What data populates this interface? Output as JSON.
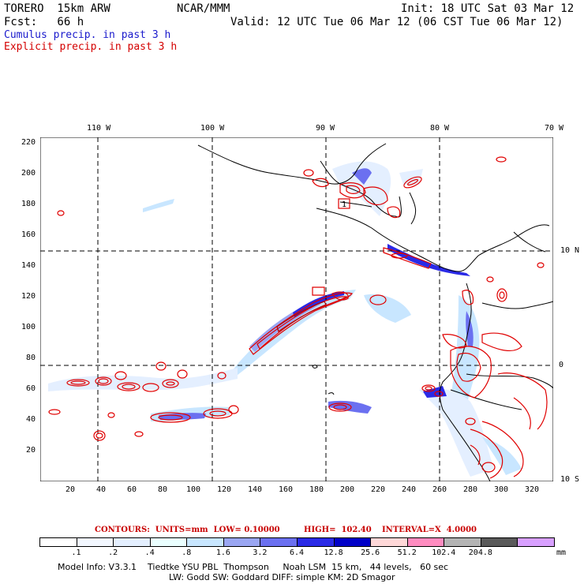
{
  "header": {
    "model": "TORERO  15km ARW",
    "org": "NCAR/MMM",
    "init": "Init: 18 UTC Sat 03 Mar 12",
    "fcst": "Fcst:   66 h",
    "valid": "Valid: 12 UTC Tue 06 Mar 12 (06 CST Tue 06 Mar 12)"
  },
  "legend": {
    "cumulus": "Cumulus precip. in past 3 h",
    "explicit": "Explicit precip. in past 3 h"
  },
  "axes": {
    "lon_labels": [
      "110 W",
      "100 W",
      "90 W",
      "80 W",
      "70 W"
    ],
    "lat_labels": [
      "10 N",
      "0",
      "10 S"
    ],
    "y_ticks": [
      "220",
      "200",
      "180",
      "160",
      "140",
      "120",
      "100",
      "80",
      "60",
      "40",
      "20"
    ],
    "x_ticks": [
      "20",
      "40",
      "60",
      "80",
      "100",
      "120",
      "140",
      "160",
      "180",
      "200",
      "220",
      "240",
      "260",
      "280",
      "300",
      "320"
    ]
  },
  "contours": {
    "units": "CONTOURS:  UNITS=mm  LOW= 0.10000",
    "high": "HIGH=  102.40",
    "interval": "INTERVAL=X  4.0000"
  },
  "colorbar": {
    "labels": [
      ".1",
      ".2",
      ".4",
      ".8",
      "1.6",
      "3.2",
      "6.4",
      "12.8",
      "25.6",
      "51.2",
      "102.4",
      "204.8"
    ],
    "unit": "mm",
    "colors": [
      "#ffffff",
      "#f2f7ff",
      "#e4efff",
      "#eaffff",
      "#c8e6ff",
      "#9aa6f2",
      "#6b70f0",
      "#2a2ae6",
      "#0000c8",
      "#ffd8d8",
      "#ff8cc0",
      "#b4b4b4",
      "#5a5a5a",
      "#d8a0ff"
    ]
  },
  "footer": {
    "line1": "Model Info: V3.3.1    Tiedtke YSU PBL  Thompson     Noah LSM  15 km,   44 levels,   60 sec",
    "line2": "LW: Godd SW: Goddard DIFF: simple KM: 2D Smagor"
  },
  "map": {
    "station_label": "1"
  }
}
